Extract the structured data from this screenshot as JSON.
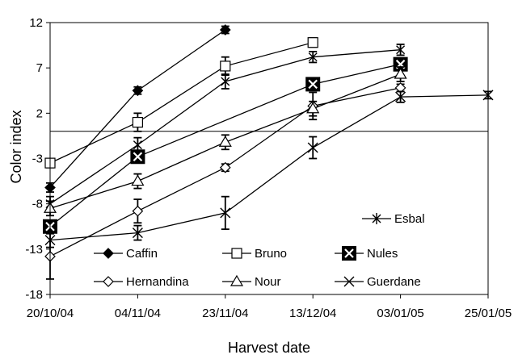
{
  "chart_data": {
    "type": "line",
    "title": "",
    "xlabel": "Harvest date",
    "ylabel": "Color index",
    "categories": [
      "20/10/04",
      "04/11/04",
      "23/11/04",
      "13/12/04",
      "03/01/05",
      "25/01/05"
    ],
    "ylim": [
      -18,
      12
    ],
    "yticks": [
      -18,
      -13,
      -8,
      -3,
      2,
      7,
      12
    ],
    "reference_line_y": 0,
    "grid": false,
    "series": [
      {
        "name": "Esbal",
        "marker": "star",
        "values": [
          -8.0,
          -1.5,
          5.5,
          8.2,
          9.0,
          null
        ],
        "errors": [
          0.8,
          0.8,
          0.8,
          0.6,
          0.6,
          null
        ]
      },
      {
        "name": "Caffin",
        "marker": "diamond-filled",
        "values": [
          -6.2,
          4.5,
          11.2,
          null,
          null,
          null
        ],
        "errors": [
          0.5,
          0.4,
          0.4,
          null,
          null,
          null
        ]
      },
      {
        "name": "Bruno",
        "marker": "square-open",
        "values": [
          -3.5,
          1.0,
          7.2,
          9.8,
          null,
          null
        ],
        "errors": [
          0.5,
          1.0,
          1.0,
          0.5,
          null,
          null
        ]
      },
      {
        "name": "Nules",
        "marker": "square-x-filled",
        "values": [
          -10.5,
          -2.8,
          null,
          5.2,
          7.4,
          null
        ],
        "errors": [
          0.6,
          0.6,
          null,
          0.6,
          0.6,
          null
        ]
      },
      {
        "name": "Hernandina",
        "marker": "diamond-open",
        "values": [
          -13.8,
          -8.8,
          -4.0,
          2.8,
          4.8,
          null
        ],
        "errors": [
          2.5,
          1.3,
          0.4,
          1.5,
          0.4,
          null
        ]
      },
      {
        "name": "Nour",
        "marker": "triangle-open",
        "values": [
          -8.5,
          -5.5,
          -1.2,
          2.5,
          6.3,
          null
        ],
        "errors": [
          0.8,
          0.8,
          0.8,
          0.8,
          0.8,
          null
        ]
      },
      {
        "name": "Guerdane",
        "marker": "x",
        "values": [
          -12.0,
          -11.2,
          -9.0,
          -1.8,
          3.8,
          4.0
        ],
        "errors": [
          0.8,
          0.8,
          1.8,
          1.2,
          0.6,
          0.4
        ]
      }
    ],
    "legend_entries": [
      "Esbal",
      "Caffin",
      "Bruno",
      "Nules",
      "Hernandina",
      "Nour",
      "Guerdane"
    ],
    "colors": {
      "line": "#000000",
      "marker_fill": "#000000",
      "marker_open": "#ffffff"
    }
  }
}
